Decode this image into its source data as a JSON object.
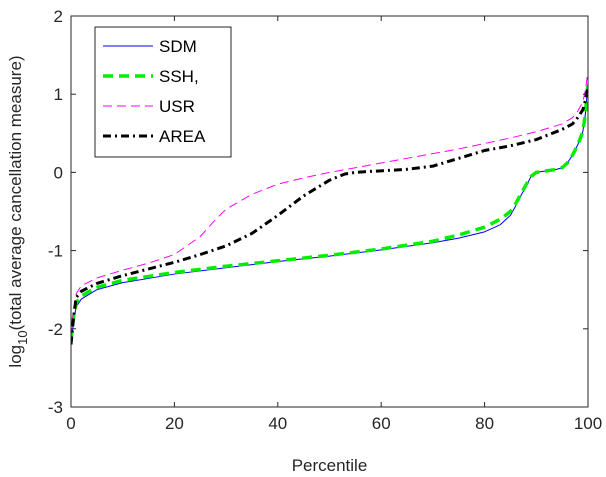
{
  "chart_data": {
    "type": "line",
    "title": "",
    "xlabel": "Percentile",
    "ylabel_main": "log",
    "ylabel_sub": "10",
    "ylabel_rest": "(total average cancellation measure)",
    "xlim": [
      0,
      100
    ],
    "ylim": [
      -3,
      2
    ],
    "xticks": [
      0,
      20,
      40,
      60,
      80,
      100
    ],
    "yticks": [
      -3,
      -2,
      -1,
      0,
      1,
      2
    ],
    "grid": false,
    "legend_position": "top-left",
    "series": [
      {
        "name": "SDM",
        "color": "#0000ff",
        "style": "solid",
        "x": [
          0,
          0.5,
          1,
          2,
          5,
          10,
          20,
          30,
          40,
          50,
          60,
          70,
          75,
          80,
          83,
          85,
          86,
          87,
          88,
          89,
          90,
          92,
          94,
          95,
          96,
          97,
          98,
          99,
          99.5,
          100
        ],
        "y": [
          -2.2,
          -1.9,
          -1.72,
          -1.62,
          -1.5,
          -1.41,
          -1.3,
          -1.22,
          -1.14,
          -1.07,
          -0.99,
          -0.9,
          -0.84,
          -0.76,
          -0.67,
          -0.55,
          -0.43,
          -0.3,
          -0.18,
          -0.05,
          0.0,
          0.02,
          0.04,
          0.06,
          0.12,
          0.22,
          0.35,
          0.52,
          0.75,
          1.15
        ]
      },
      {
        "name": "SSH,",
        "color": "#00ee00",
        "style": "dashed",
        "x": [
          0,
          0.5,
          1,
          2,
          5,
          10,
          20,
          30,
          40,
          50,
          60,
          70,
          75,
          80,
          83,
          85,
          86,
          87,
          88,
          89,
          90,
          92,
          94,
          95,
          96,
          97,
          98,
          99,
          99.5,
          100
        ],
        "y": [
          -2.15,
          -1.85,
          -1.67,
          -1.58,
          -1.47,
          -1.38,
          -1.28,
          -1.2,
          -1.13,
          -1.06,
          -0.98,
          -0.88,
          -0.8,
          -0.7,
          -0.6,
          -0.5,
          -0.4,
          -0.28,
          -0.16,
          -0.05,
          0.0,
          0.02,
          0.04,
          0.06,
          0.12,
          0.22,
          0.35,
          0.52,
          0.75,
          1.15
        ]
      },
      {
        "name": "USR",
        "color": "#ff00ff",
        "style": "dashed-thin",
        "x": [
          0,
          0.5,
          1,
          2,
          5,
          10,
          15,
          20,
          25,
          28,
          30,
          35,
          40,
          45,
          50,
          55,
          60,
          65,
          70,
          75,
          80,
          85,
          90,
          95,
          97,
          98,
          99,
          99.5,
          100
        ],
        "y": [
          -2.1,
          -1.75,
          -1.55,
          -1.45,
          -1.35,
          -1.25,
          -1.16,
          -1.05,
          -0.82,
          -0.6,
          -0.47,
          -0.28,
          -0.15,
          -0.07,
          0.0,
          0.06,
          0.12,
          0.18,
          0.24,
          0.3,
          0.37,
          0.44,
          0.52,
          0.62,
          0.7,
          0.78,
          0.9,
          1.05,
          1.3
        ]
      },
      {
        "name": "AREA",
        "color": "#000000",
        "style": "dashdot",
        "x": [
          0,
          0.5,
          1,
          2,
          5,
          10,
          20,
          25,
          30,
          35,
          40,
          45,
          50,
          53,
          55,
          57,
          60,
          65,
          70,
          75,
          80,
          85,
          90,
          95,
          97,
          98,
          99,
          99.5,
          100
        ],
        "y": [
          -2.2,
          -1.85,
          -1.6,
          -1.52,
          -1.42,
          -1.32,
          -1.15,
          -1.05,
          -0.94,
          -0.78,
          -0.55,
          -0.3,
          -0.1,
          -0.02,
          0.0,
          0.01,
          0.02,
          0.04,
          0.08,
          0.18,
          0.28,
          0.34,
          0.42,
          0.55,
          0.62,
          0.7,
          0.8,
          0.92,
          1.1
        ]
      }
    ]
  }
}
